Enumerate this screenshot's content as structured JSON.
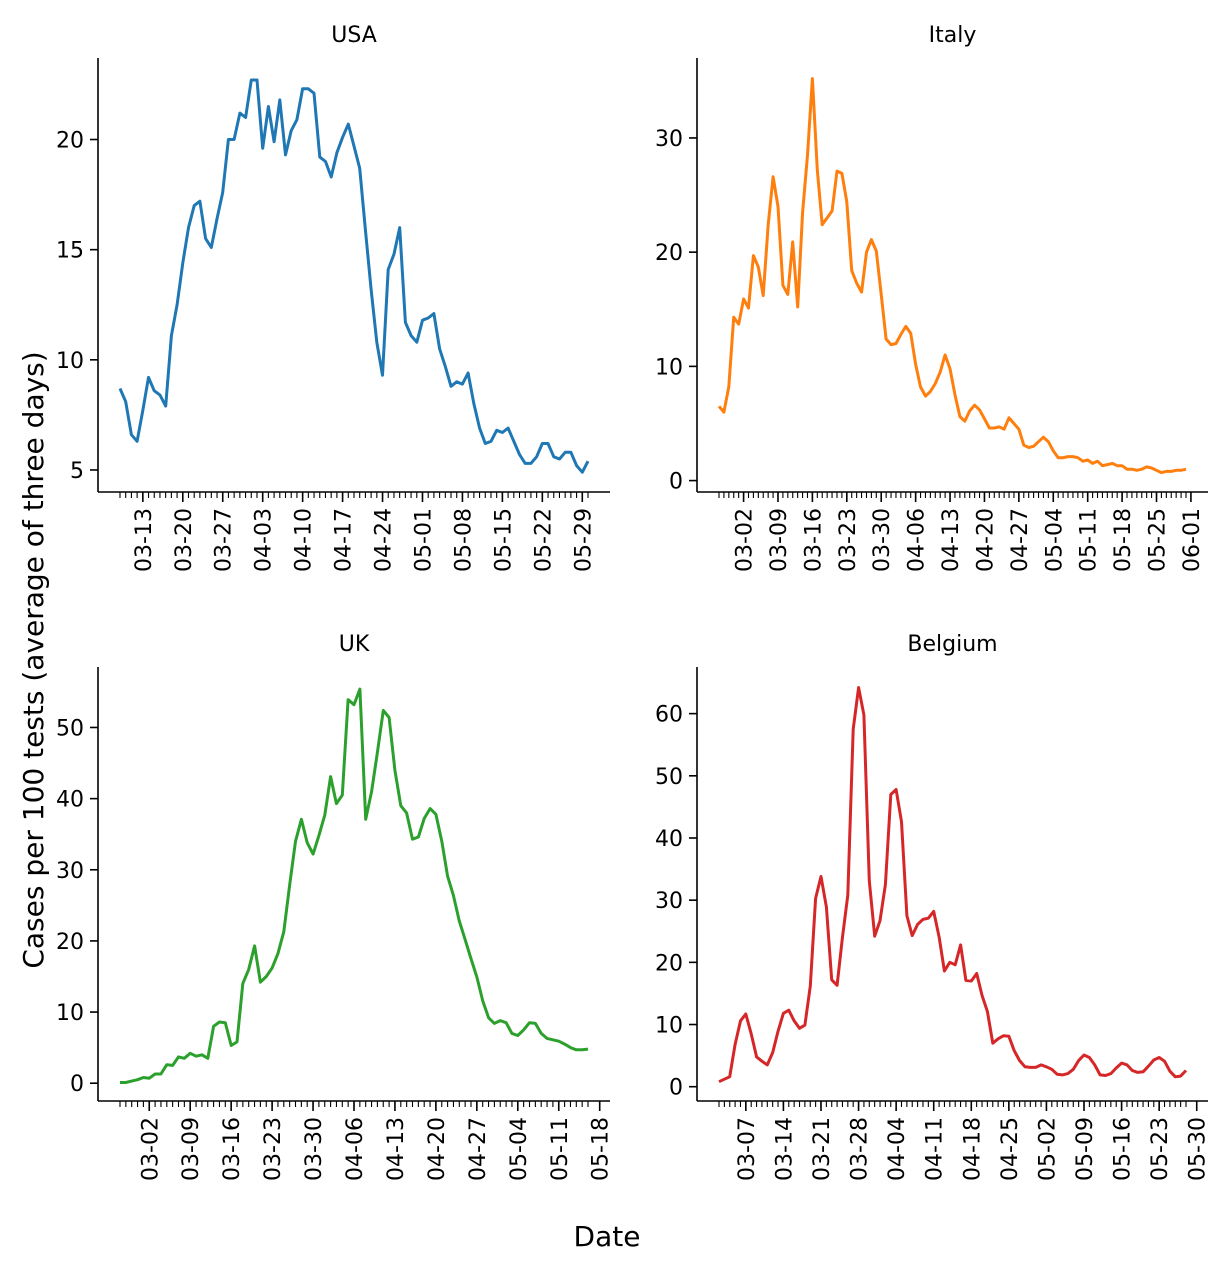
{
  "figure": {
    "xlabel": "Date",
    "ylabel": "Cases per 100 tests (average of three days)"
  },
  "chart_data": [
    {
      "type": "line",
      "title": "USA",
      "color": "#1f77b4",
      "start_date": "2020-03-09",
      "ylim": [
        4.0,
        23.7
      ],
      "yticks": [
        5,
        10,
        15,
        20
      ],
      "xticks": [
        "03-13",
        "03-20",
        "03-27",
        "04-03",
        "04-10",
        "04-17",
        "04-24",
        "05-01",
        "05-08",
        "05-15",
        "05-22",
        "05-29"
      ],
      "values": [
        8.7,
        8.1,
        6.6,
        6.3,
        7.7,
        9.2,
        8.6,
        8.4,
        7.9,
        11.1,
        12.5,
        14.4,
        16.0,
        17.0,
        17.2,
        15.5,
        15.1,
        16.4,
        17.6,
        20.0,
        20.0,
        21.2,
        21.0,
        22.7,
        22.7,
        19.6,
        21.5,
        19.9,
        21.8,
        19.3,
        20.4,
        20.9,
        22.3,
        22.3,
        22.1,
        19.2,
        19.0,
        18.3,
        19.4,
        20.1,
        20.7,
        19.7,
        18.7,
        15.9,
        13.2,
        10.8,
        9.3,
        14.1,
        14.8,
        16.0,
        11.7,
        11.1,
        10.8,
        11.8,
        11.9,
        12.1,
        10.5,
        9.7,
        8.8,
        9.0,
        8.9,
        9.4,
        8.0,
        6.9,
        6.2,
        6.3,
        6.8,
        6.7,
        6.9,
        6.3,
        5.7,
        5.3,
        5.3,
        5.6,
        6.2,
        6.2,
        5.6,
        5.5,
        5.8,
        5.8,
        5.2,
        4.9,
        5.4
      ]
    },
    {
      "type": "line",
      "title": "Italy",
      "color": "#ff7f0e",
      "start_date": "2020-02-26",
      "ylim": [
        -1.0,
        37.0
      ],
      "yticks": [
        0,
        10,
        20,
        30
      ],
      "xticks": [
        "03-02",
        "03-09",
        "03-16",
        "03-23",
        "03-30",
        "04-06",
        "04-13",
        "04-20",
        "04-27",
        "05-04",
        "05-11",
        "05-18",
        "05-25",
        "06-01"
      ],
      "values": [
        6.5,
        6.0,
        8.2,
        14.3,
        13.7,
        15.9,
        15.1,
        19.7,
        18.7,
        16.2,
        22.4,
        26.6,
        24.0,
        17.1,
        16.3,
        20.9,
        15.2,
        23.5,
        28.5,
        35.2,
        27.2,
        22.4,
        23.0,
        23.6,
        27.1,
        26.9,
        24.4,
        18.4,
        17.3,
        16.5,
        20.0,
        21.1,
        20.1,
        16.3,
        12.4,
        11.9,
        12.0,
        12.8,
        13.5,
        12.9,
        10.2,
        8.2,
        7.4,
        7.8,
        8.5,
        9.5,
        11.0,
        9.8,
        7.5,
        5.6,
        5.2,
        6.1,
        6.6,
        6.2,
        5.4,
        4.6,
        4.6,
        4.7,
        4.5,
        5.5,
        5.0,
        4.5,
        3.1,
        2.9,
        3.0,
        3.4,
        3.8,
        3.4,
        2.6,
        2.0,
        2.0,
        2.1,
        2.1,
        2.0,
        1.7,
        1.8,
        1.5,
        1.7,
        1.3,
        1.4,
        1.5,
        1.3,
        1.3,
        1.0,
        1.0,
        0.9,
        1.0,
        1.2,
        1.1,
        0.9,
        0.7,
        0.8,
        0.8,
        0.9,
        0.9,
        1.0
      ]
    },
    {
      "type": "line",
      "title": "UK",
      "color": "#2ca02c",
      "start_date": "2020-02-26",
      "ylim": [
        -2.5,
        58.5
      ],
      "yticks": [
        0,
        10,
        20,
        30,
        40,
        50
      ],
      "xticks": [
        "03-02",
        "03-09",
        "03-16",
        "03-23",
        "03-30",
        "04-06",
        "04-13",
        "04-20",
        "04-27",
        "05-04",
        "05-11",
        "05-18"
      ],
      "values": [
        0.1,
        0.1,
        0.3,
        0.5,
        0.8,
        0.7,
        1.3,
        1.3,
        2.6,
        2.5,
        3.7,
        3.5,
        4.2,
        3.8,
        4.0,
        3.5,
        8.0,
        8.6,
        8.5,
        5.3,
        5.8,
        14.0,
        16.0,
        19.3,
        14.2,
        15.0,
        16.2,
        18.2,
        21.3,
        27.8,
        34.0,
        37.1,
        33.8,
        32.2,
        34.8,
        37.7,
        43.1,
        39.3,
        40.5,
        53.9,
        53.2,
        55.4,
        37.1,
        41.0,
        46.5,
        52.4,
        51.4,
        44.0,
        39.0,
        38.0,
        34.3,
        34.6,
        37.2,
        38.6,
        37.8,
        34.0,
        29.1,
        26.4,
        22.8,
        20.2,
        17.5,
        14.9,
        11.6,
        9.2,
        8.4,
        8.8,
        8.5,
        7.0,
        6.7,
        7.5,
        8.5,
        8.4,
        7.0,
        6.3,
        6.1,
        5.9,
        5.5,
        5.0,
        4.7,
        4.7,
        4.8
      ]
    },
    {
      "type": "line",
      "title": "Belgium",
      "color": "#d62728",
      "start_date": "2020-03-02",
      "ylim": [
        -2.3,
        67.5
      ],
      "yticks": [
        0,
        10,
        20,
        30,
        40,
        50,
        60
      ],
      "xticks": [
        "03-07",
        "03-14",
        "03-21",
        "03-28",
        "04-04",
        "04-11",
        "04-18",
        "04-25",
        "05-02",
        "05-09",
        "05-16",
        "05-23",
        "05-30"
      ],
      "values": [
        0.8,
        1.2,
        1.6,
        6.8,
        10.6,
        11.7,
        8.5,
        4.8,
        4.1,
        3.5,
        5.5,
        8.9,
        11.8,
        12.3,
        10.6,
        9.4,
        9.9,
        16.2,
        30.3,
        33.8,
        28.9,
        17.2,
        16.3,
        24.1,
        30.8,
        57.5,
        64.2,
        59.8,
        33.1,
        24.2,
        26.7,
        32.5,
        47.0,
        47.8,
        42.6,
        27.5,
        24.3,
        26.1,
        26.9,
        27.1,
        28.2,
        24.1,
        18.6,
        20.0,
        19.6,
        22.8,
        17.1,
        17.0,
        18.2,
        14.7,
        12.1,
        7.0,
        7.7,
        8.2,
        8.1,
        5.8,
        4.2,
        3.2,
        3.1,
        3.1,
        3.5,
        3.2,
        2.8,
        2.0,
        1.9,
        2.1,
        2.8,
        4.2,
        5.1,
        4.7,
        3.5,
        1.9,
        1.8,
        2.1,
        3.0,
        3.8,
        3.5,
        2.6,
        2.3,
        2.4,
        3.3,
        4.3,
        4.7,
        4.1,
        2.5,
        1.6,
        1.7,
        2.6
      ]
    }
  ]
}
